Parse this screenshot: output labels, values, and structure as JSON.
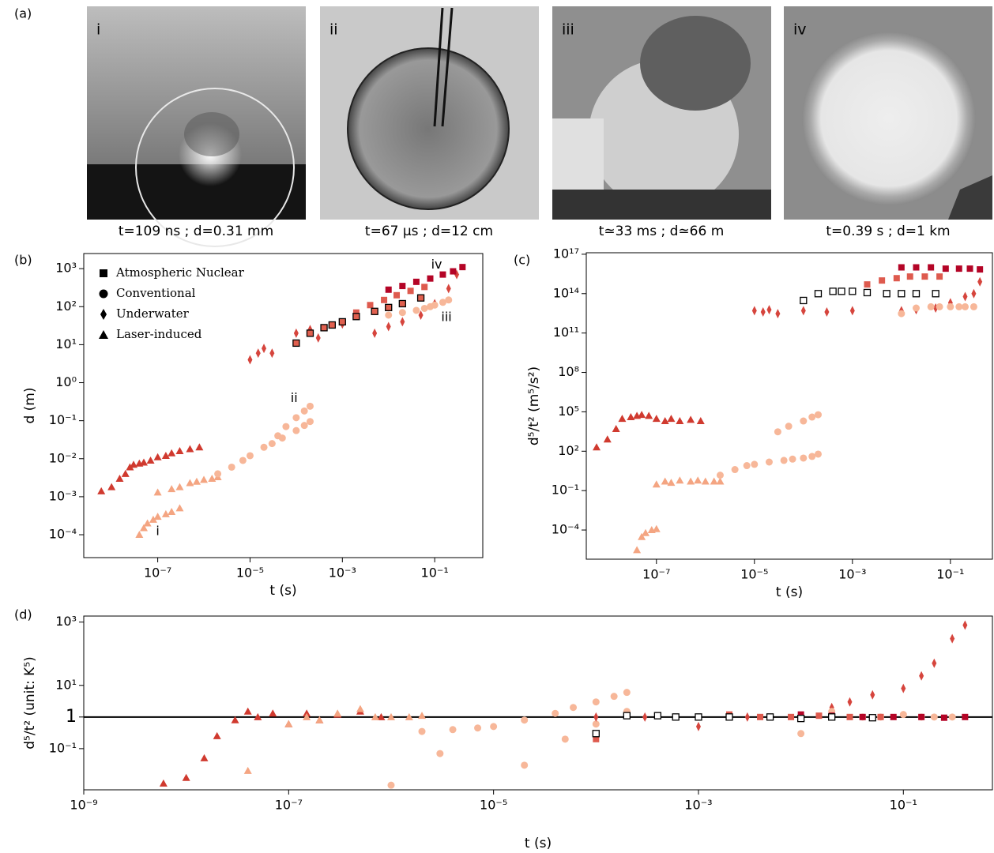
{
  "figure": {
    "panel_label": "(a)",
    "photos": [
      {
        "roman": "i",
        "caption": "t=109 ns ; d=0.31 mm"
      },
      {
        "roman": "ii",
        "caption": "t=67 μs ; d=12 cm"
      },
      {
        "roman": "iii",
        "caption": "t≃33 ms ; d≃66 m"
      },
      {
        "roman": "iv",
        "caption": "t=0.39 s ; d=1 km"
      }
    ]
  },
  "chart_data": [
    {
      "type": "scatter",
      "panel_label": "(b)",
      "x_label": "t (s)",
      "y_label": "d (m)",
      "log_x": true,
      "log_y": true,
      "xlim": [
        2.5e-09,
        1.1
      ],
      "ylim": [
        2.5e-05,
        2500
      ],
      "xticks": [
        {
          "value": 1e-07,
          "label": "10⁻⁷"
        },
        {
          "value": 1e-05,
          "label": "10⁻⁵"
        },
        {
          "value": 0.001,
          "label": "10⁻³"
        },
        {
          "value": 0.1,
          "label": "10⁻¹"
        }
      ],
      "yticks": [
        {
          "value": 0.0001,
          "label": "10⁻⁴"
        },
        {
          "value": 0.001,
          "label": "10⁻³"
        },
        {
          "value": 0.01,
          "label": "10⁻²"
        },
        {
          "value": 0.1,
          "label": "10⁻¹"
        },
        {
          "value": 1,
          "label": "10⁰"
        },
        {
          "value": 10,
          "label": "10¹"
        },
        {
          "value": 100,
          "label": "10²"
        },
        {
          "value": 1000,
          "label": "10³"
        }
      ],
      "legend_loc": "upper left",
      "legend": [
        {
          "name": "Atmospheric Nuclear",
          "marker": "square"
        },
        {
          "name": "Conventional",
          "marker": "circle"
        },
        {
          "name": "Underwater",
          "marker": "diamond"
        },
        {
          "name": "Laser-induced",
          "marker": "triangle"
        }
      ],
      "annotations": [
        {
          "text": "i",
          "x": 1e-07,
          "y": 0.00012
        },
        {
          "text": "ii",
          "x": 9e-05,
          "y": 0.38
        },
        {
          "text": "iii",
          "x": 0.18,
          "y": 52
        },
        {
          "text": "iv",
          "x": 0.11,
          "y": 1260
        }
      ],
      "series": [
        {
          "marker": "triangle",
          "color": "#d03a2f",
          "x": [
            6e-09,
            1e-08,
            1.5e-08,
            2e-08,
            2.5e-08,
            3e-08,
            4e-08,
            5e-08,
            7e-08,
            1e-07,
            1.5e-07,
            2e-07,
            3e-07,
            5e-07,
            8e-07
          ],
          "values": [
            0.0014,
            0.0018,
            0.003,
            0.004,
            0.006,
            0.007,
            0.0075,
            0.008,
            0.009,
            0.011,
            0.012,
            0.014,
            0.016,
            0.018,
            0.02
          ]
        },
        {
          "marker": "triangle",
          "color": "#f4a582",
          "x": [
            4e-08,
            5e-08,
            6e-08,
            8e-08,
            1e-07,
            1.5e-07,
            2e-07,
            3e-07,
            1e-07,
            2e-07,
            3e-07,
            5e-07,
            7e-07,
            1e-06,
            1.5e-06,
            2e-06
          ],
          "values": [
            0.0001,
            0.00015,
            0.0002,
            0.00025,
            0.0003,
            0.00035,
            0.0004,
            0.0005,
            0.0013,
            0.0016,
            0.0018,
            0.0023,
            0.0025,
            0.0028,
            0.003,
            0.0033
          ]
        },
        {
          "marker": "circle",
          "color": "#f7b799",
          "x": [
            2e-06,
            4e-06,
            7e-06,
            1e-05,
            2e-05,
            4e-05,
            6e-05,
            0.0001,
            0.00015,
            0.0002,
            3e-05,
            5e-05,
            0.0001,
            0.00015,
            0.0002
          ],
          "values": [
            0.004,
            0.006,
            0.009,
            0.012,
            0.02,
            0.04,
            0.07,
            0.12,
            0.18,
            0.24,
            0.025,
            0.035,
            0.055,
            0.075,
            0.095
          ]
        },
        {
          "marker": "diamond",
          "color": "#d6453d",
          "x": [
            1e-05,
            1.5e-05,
            2e-05,
            3e-05,
            0.0001,
            0.0002,
            0.0003,
            0.001,
            0.005,
            0.01,
            0.02,
            0.05,
            0.1,
            0.2,
            0.3
          ],
          "values": [
            4,
            6,
            8,
            6,
            20,
            25,
            15,
            35,
            20,
            30,
            40,
            60,
            120,
            300,
            700
          ]
        },
        {
          "marker": "circle",
          "color": "#f7b799",
          "x": [
            0.01,
            0.02,
            0.04,
            0.06,
            0.08,
            0.1,
            0.15,
            0.2
          ],
          "values": [
            60,
            70,
            80,
            90,
            100,
            110,
            130,
            150
          ]
        },
        {
          "marker": "square",
          "color": "#de5a4e",
          "x": [
            0.002,
            0.004,
            0.008,
            0.015,
            0.03,
            0.06
          ],
          "values": [
            70,
            110,
            150,
            200,
            260,
            330
          ]
        },
        {
          "marker": "square",
          "color": "#b40426",
          "x": [
            0.01,
            0.02,
            0.04,
            0.08,
            0.15,
            0.25,
            0.4
          ],
          "values": [
            280,
            350,
            450,
            550,
            700,
            850,
            1100
          ]
        },
        {
          "marker": "square",
          "color": "#e0604f",
          "edgecolor": "#000000",
          "x": [
            0.0001,
            0.0002,
            0.0004,
            0.0006,
            0.001,
            0.002,
            0.005,
            0.01,
            0.02,
            0.05
          ],
          "values": [
            11,
            20,
            28,
            33,
            40,
            55,
            75,
            95,
            120,
            170
          ]
        }
      ]
    },
    {
      "type": "scatter",
      "panel_label": "(c)",
      "x_label": "t (s)",
      "y_label": "d⁵/t² (m⁵/s²)",
      "log_x": true,
      "log_y": true,
      "xlim": [
        3.7e-09,
        0.72
      ],
      "ylim": [
        6e-07,
        1.3e+17
      ],
      "xticks": [
        {
          "value": 1e-07,
          "label": "10⁻⁷"
        },
        {
          "value": 1e-05,
          "label": "10⁻⁵"
        },
        {
          "value": 0.001,
          "label": "10⁻³"
        },
        {
          "value": 0.1,
          "label": "10⁻¹"
        }
      ],
      "yticks": [
        {
          "value": 0.0001,
          "label": "10⁻⁴"
        },
        {
          "value": 0.1,
          "label": "10⁻¹"
        },
        {
          "value": 100,
          "label": "10²"
        },
        {
          "value": 100000.0,
          "label": "10⁵"
        },
        {
          "value": 100000000.0,
          "label": "10⁸"
        },
        {
          "value": 100000000000.0,
          "label": "10¹¹"
        },
        {
          "value": 100000000000000.0,
          "label": "10¹⁴"
        },
        {
          "value": 1e+17,
          "label": "10¹⁷"
        }
      ],
      "series": [
        {
          "marker": "triangle",
          "color": "#d03a2f",
          "x": [
            6e-09,
            1e-08,
            1.5e-08,
            2e-08,
            3e-08,
            4e-08,
            5e-08,
            7e-08,
            1e-07,
            1.5e-07,
            2e-07,
            3e-07,
            5e-07,
            8e-07
          ],
          "values": [
            200,
            800,
            5000,
            30000,
            40000,
            50000,
            60000,
            50000,
            30000,
            20000,
            30000,
            20000,
            25000,
            20000
          ]
        },
        {
          "marker": "triangle",
          "color": "#f4a582",
          "x": [
            4e-08,
            5e-08,
            6e-08,
            8e-08,
            1e-07,
            1e-07,
            1.5e-07,
            2e-07,
            3e-07,
            5e-07,
            7e-07,
            1e-06,
            1.5e-06,
            2e-06
          ],
          "values": [
            3e-06,
            3e-05,
            6e-05,
            0.0001,
            0.00012,
            0.3,
            0.5,
            0.4,
            0.6,
            0.5,
            0.6,
            0.5,
            0.5,
            0.5
          ]
        },
        {
          "marker": "circle",
          "color": "#f7b799",
          "x": [
            2e-06,
            4e-06,
            7e-06,
            1e-05,
            2e-05,
            4e-05,
            6e-05,
            0.0001,
            0.00015,
            0.0002,
            3e-05,
            5e-05,
            0.0001,
            0.00015,
            0.0002
          ],
          "values": [
            1.5,
            4,
            8,
            10,
            15,
            20,
            25,
            30,
            40,
            60,
            3000,
            8000,
            20000,
            40000,
            60000
          ]
        },
        {
          "marker": "diamond",
          "color": "#d6453d",
          "x": [
            1e-05,
            1.5e-05,
            2e-05,
            3e-05,
            0.0001,
            0.0003,
            0.001,
            0.01,
            0.02,
            0.05,
            0.1,
            0.2,
            0.3,
            0.4
          ],
          "values": [
            5000000000000.0,
            4000000000000.0,
            6000000000000.0,
            3000000000000.0,
            5000000000000.0,
            4000000000000.0,
            5000000000000.0,
            5000000000000.0,
            6000000000000.0,
            8000000000000.0,
            20000000000000.0,
            60000000000000.0,
            100000000000000.0,
            800000000000000.0
          ]
        },
        {
          "marker": "circle",
          "color": "#f7b799",
          "x": [
            0.01,
            0.02,
            0.04,
            0.06,
            0.1,
            0.15,
            0.2,
            0.3
          ],
          "values": [
            3000000000000.0,
            8000000000000.0,
            10000000000000.0,
            10000000000000.0,
            10000000000000.0,
            10000000000000.0,
            10000000000000.0,
            10000000000000.0
          ]
        },
        {
          "marker": "square",
          "color": "#de5a4e",
          "x": [
            0.002,
            0.004,
            0.008,
            0.015,
            0.03,
            0.06
          ],
          "values": [
            500000000000000.0,
            1000000000000000.0,
            1500000000000000.0,
            2000000000000000.0,
            2000000000000000.0,
            2000000000000000.0
          ]
        },
        {
          "marker": "square",
          "color": "#b40426",
          "x": [
            0.01,
            0.02,
            0.04,
            0.08,
            0.15,
            0.25,
            0.4
          ],
          "values": [
            1e+16,
            1e+16,
            1e+16,
            8000000000000000.0,
            8000000000000000.0,
            8000000000000000.0,
            7000000000000000.0
          ]
        },
        {
          "marker": "square",
          "color": "#ffffff",
          "edgecolor": "#000000",
          "x": [
            0.0001,
            0.0002,
            0.0004,
            0.0006,
            0.001,
            0.002,
            0.005,
            0.01,
            0.02,
            0.05
          ],
          "values": [
            30000000000000.0,
            100000000000000.0,
            150000000000000.0,
            150000000000000.0,
            150000000000000.0,
            120000000000000.0,
            100000000000000.0,
            100000000000000.0,
            100000000000000.0,
            100000000000000.0
          ]
        }
      ]
    },
    {
      "type": "scatter",
      "panel_label": "(d)",
      "x_label": "t (s)",
      "y_label": "d⁵/t² (unit: K⁵)",
      "log_x": true,
      "log_y": true,
      "xlim": [
        1e-09,
        0.74
      ],
      "ylim": [
        0.005,
        1550
      ],
      "reference_line": 1,
      "xticks": [
        {
          "value": 1e-09,
          "label": "10⁻⁹"
        },
        {
          "value": 1e-07,
          "label": "10⁻⁷"
        },
        {
          "value": 1e-05,
          "label": "10⁻⁵"
        },
        {
          "value": 0.001,
          "label": "10⁻³"
        },
        {
          "value": 0.1,
          "label": "10⁻¹"
        }
      ],
      "yticks": [
        {
          "value": 0.1,
          "label": "10⁻¹"
        },
        1,
        {
          "value": 10,
          "label": "10¹"
        },
        {
          "value": 1000,
          "label": "10³"
        }
      ],
      "series": [
        {
          "marker": "triangle",
          "color": "#d03a2f",
          "x": [
            6e-09,
            1e-08,
            1.5e-08,
            2e-08,
            3e-08,
            4e-08,
            5e-08,
            7e-08,
            1e-07,
            1.5e-07,
            2e-07,
            3e-07,
            5e-07,
            8e-07
          ],
          "values": [
            0.008,
            0.012,
            0.05,
            0.25,
            0.8,
            1.5,
            1,
            1.3,
            0.6,
            1.3,
            0.8,
            1.2,
            1.5,
            1
          ]
        },
        {
          "marker": "triangle",
          "color": "#f4a582",
          "x": [
            4e-08,
            1e-07,
            1.5e-07,
            2e-07,
            3e-07,
            5e-07,
            7e-07,
            1e-06,
            1.5e-06,
            2e-06
          ],
          "values": [
            0.02,
            0.6,
            1,
            0.8,
            1.3,
            1.8,
            1,
            1,
            1,
            1.1
          ]
        },
        {
          "marker": "circle",
          "color": "#f7b799",
          "x": [
            2e-06,
            4e-06,
            7e-06,
            1e-05,
            2e-05,
            4e-05,
            6e-05,
            0.0001,
            0.00015,
            0.0002,
            1e-06,
            3e-06,
            2e-05,
            5e-05,
            0.0001,
            0.0002
          ],
          "values": [
            0.35,
            0.4,
            0.45,
            0.5,
            0.8,
            1.3,
            2,
            3,
            4.5,
            6,
            0.007,
            0.07,
            0.03,
            0.2,
            0.6,
            1.5
          ]
        },
        {
          "marker": "diamond",
          "color": "#d6453d",
          "x": [
            0.0001,
            0.0003,
            0.001,
            0.003,
            0.01,
            0.02,
            0.03,
            0.05,
            0.1,
            0.15,
            0.2,
            0.3,
            0.4
          ],
          "values": [
            1,
            1,
            0.5,
            1,
            1,
            2,
            3,
            5,
            8,
            20,
            50,
            300,
            800
          ]
        },
        {
          "marker": "circle",
          "color": "#f7b799",
          "x": [
            0.01,
            0.02,
            0.04,
            0.06,
            0.1,
            0.15,
            0.2,
            0.3
          ],
          "values": [
            0.3,
            1.5,
            1,
            1,
            1.2,
            1,
            1,
            1
          ]
        },
        {
          "marker": "square",
          "color": "#de5a4e",
          "x": [
            0.0001,
            0.002,
            0.004,
            0.008,
            0.015,
            0.03,
            0.06
          ],
          "values": [
            0.2,
            1.2,
            1,
            1,
            1.1,
            1,
            1
          ]
        },
        {
          "marker": "square",
          "color": "#b40426",
          "x": [
            0.01,
            0.02,
            0.04,
            0.08,
            0.15,
            0.25,
            0.4
          ],
          "values": [
            1.2,
            1.1,
            1,
            1,
            1,
            0.95,
            1
          ]
        },
        {
          "marker": "square",
          "color": "#ffffff",
          "edgecolor": "#000000",
          "x": [
            0.0001,
            0.0002,
            0.0004,
            0.0006,
            0.001,
            0.002,
            0.005,
            0.01,
            0.02,
            0.05
          ],
          "values": [
            0.3,
            1.1,
            1.1,
            1,
            1,
            1,
            1,
            0.9,
            1,
            0.95
          ]
        }
      ]
    }
  ]
}
